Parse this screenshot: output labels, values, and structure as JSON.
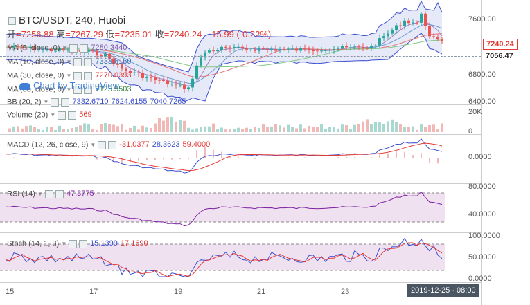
{
  "header": {
    "title": "BTC/USDT, 240, Huobi",
    "ohlc": {
      "open_label": "开",
      "open": "=7256.88",
      "high_label": "高",
      "high": "=7267.29",
      "low_label": "低",
      "low": "=7235.01",
      "close_label": "收",
      "close": "=7240.24",
      "change": "-15.99 (-0.22%)"
    }
  },
  "indicators": {
    "ma5": {
      "label": "MA (5, close, 0)",
      "value": "7280.3440"
    },
    "ma10": {
      "label": "MA (10, close, 0)",
      "value": "7333.6160"
    },
    "ma30": {
      "label": "MA (30, close, 0)",
      "value": "7270.0393"
    },
    "ma60": {
      "label": "MA (60, close, 0)",
      "value": "7125.5503"
    },
    "bb": {
      "label": "BB (20, 2)",
      "v1": "7332.6710",
      "v2": "7624.6155",
      "v3": "7040.7265"
    }
  },
  "watermark": "Chart by TradingView",
  "price_axis": {
    "ticks": [
      "7600.00",
      "6800.00",
      "6400.00"
    ],
    "last_price": "7240.24",
    "marker_price": "7056.47"
  },
  "volume": {
    "label": "Volume (20)",
    "value": "569",
    "ticks": [
      "20K",
      "0"
    ]
  },
  "macd": {
    "label": "MACD (12, 26, close, 9)",
    "v1": "-31.0377",
    "v2": "28.3623",
    "v3": "59.4000",
    "ticks": [
      "0.0000"
    ]
  },
  "rsi": {
    "label": "RSI (14)",
    "value": "47.3775",
    "ticks": [
      "80.0000",
      "40.0000"
    ]
  },
  "stoch": {
    "label": "Stoch (14, 1, 3)",
    "v1": "15.1399",
    "v2": "17.1690",
    "ticks": [
      "100.0000",
      "50.0000",
      "0.0000"
    ]
  },
  "time_axis": {
    "labels": [
      "15",
      "17",
      "19",
      "21",
      "23"
    ],
    "crosshair_label": "2019-12-25 · 08:00"
  },
  "colors": {
    "up": "#26a69a",
    "down": "#ef5350",
    "bb": "#3b4fcf",
    "rsi_bg": "#e9d4ea"
  }
}
